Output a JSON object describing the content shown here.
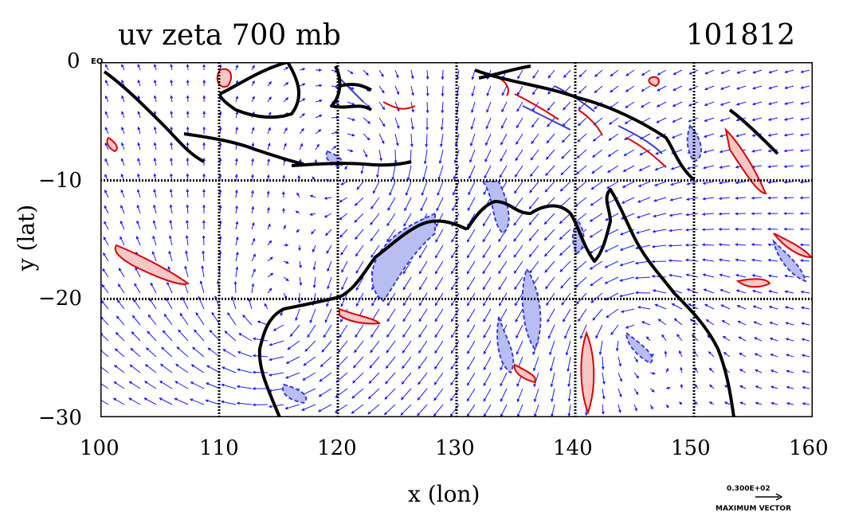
{
  "title_left": "uv zeta 700 mb",
  "title_right": "101812",
  "x_axis_label": "x (lon)",
  "y_axis_label": "y (lat)",
  "x_ticks": [
    "100",
    "110",
    "120",
    "130",
    "140",
    "150",
    "160"
  ],
  "y_ticks": [
    "0",
    "−10",
    "−20",
    "−30"
  ],
  "equator_label": "EQ",
  "reference_vector": {
    "value_text": "0.300E+02",
    "label": "MAXIMUM VECTOR"
  },
  "colors": {
    "vectors": "#1a1aff",
    "positive": "#e00000",
    "negative": "#3b3bd6",
    "coast": "#000000"
  },
  "map": {
    "lon_range": [
      100,
      160
    ],
    "lat_range": [
      -30,
      0
    ],
    "grid_lon": [
      110,
      120,
      130,
      140,
      150
    ],
    "grid_lat": [
      -10,
      -20
    ]
  }
}
